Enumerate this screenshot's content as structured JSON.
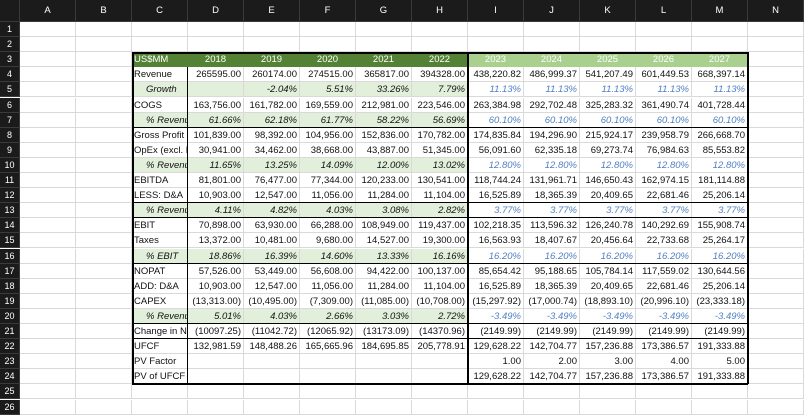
{
  "columns": [
    "A",
    "B",
    "C",
    "D",
    "E",
    "F",
    "G",
    "H",
    "I",
    "J",
    "K",
    "L",
    "M",
    "N"
  ],
  "row_numbers": [
    "1",
    "2",
    "3",
    "4",
    "5",
    "6",
    "7",
    "8",
    "9",
    "10",
    "11",
    "12",
    "13",
    "14",
    "15",
    "16",
    "17",
    "18",
    "19",
    "20",
    "21",
    "22",
    "23",
    "24",
    "25",
    "26"
  ],
  "table": {
    "header": [
      "US$MM",
      "2018",
      "2019",
      "2020",
      "2021",
      "2022",
      "2023",
      "2024",
      "2025",
      "2026",
      "2027"
    ],
    "rows": [
      {
        "label": "Revenue",
        "values": [
          "265595.00",
          "260174.00",
          "274515.00",
          "365817.00",
          "394328.00",
          "438,220.82",
          "486,999.37",
          "541,207.49",
          "601,449.53",
          "668,397.14"
        ]
      },
      {
        "label": "Growth",
        "values": [
          null,
          "-2.04%",
          "5.51%",
          "33.26%",
          "7.79%",
          "11.13%",
          "11.13%",
          "11.13%",
          "11.13%",
          "11.13%"
        ]
      },
      {
        "label": "COGS",
        "values": [
          "163,756.00",
          "161,782.00",
          "169,559.00",
          "212,981.00",
          "223,546.00",
          "263,384.98",
          "292,702.48",
          "325,283.32",
          "361,490.74",
          "401,728.44"
        ]
      },
      {
        "label": "% Revenue",
        "values": [
          "61.66%",
          "62.18%",
          "61.77%",
          "58.22%",
          "56.69%",
          "60.10%",
          "60.10%",
          "60.10%",
          "60.10%",
          "60.10%"
        ]
      },
      {
        "label": "Gross Profit",
        "values": [
          "101,839.00",
          "98,392.00",
          "104,956.00",
          "152,836.00",
          "170,782.00",
          "174,835.84",
          "194,296.90",
          "215,924.17",
          "239,958.79",
          "266,668.70"
        ]
      },
      {
        "label": "OpEx (excl. D",
        "values": [
          "30,941.00",
          "34,462.00",
          "38,668.00",
          "43,887.00",
          "51,345.00",
          "56,091.60",
          "62,335.18",
          "69,273.74",
          "76,984.63",
          "85,553.82"
        ]
      },
      {
        "label": "% Revenue",
        "values": [
          "11.65%",
          "13.25%",
          "14.09%",
          "12.00%",
          "13.02%",
          "12.80%",
          "12.80%",
          "12.80%",
          "12.80%",
          "12.80%"
        ]
      },
      {
        "label": "EBITDA",
        "values": [
          "81,801.00",
          "76,477.00",
          "77,344.00",
          "120,233.00",
          "130,541.00",
          "118,744.24",
          "131,961.71",
          "146,650.43",
          "162,974.15",
          "181,114.88"
        ]
      },
      {
        "label": "LESS: D&A",
        "values": [
          "10,903.00",
          "12,547.00",
          "11,056.00",
          "11,284.00",
          "11,104.00",
          "16,525.89",
          "18,365.39",
          "20,409.65",
          "22,681.46",
          "25,206.14"
        ]
      },
      {
        "label": "% Revenue",
        "values": [
          "4.11%",
          "4.82%",
          "4.03%",
          "3.08%",
          "2.82%",
          "3.77%",
          "3.77%",
          "3.77%",
          "3.77%",
          "3.77%"
        ]
      },
      {
        "label": "EBIT",
        "values": [
          "70,898.00",
          "63,930.00",
          "66,288.00",
          "108,949.00",
          "119,437.00",
          "102,218.35",
          "113,596.32",
          "126,240.78",
          "140,292.69",
          "155,908.74"
        ]
      },
      {
        "label": "Taxes",
        "values": [
          "13,372.00",
          "10,481.00",
          "9,680.00",
          "14,527.00",
          "19,300.00",
          "16,563.93",
          "18,407.67",
          "20,456.64",
          "22,733.68",
          "25,264.17"
        ]
      },
      {
        "label": "% EBIT",
        "values": [
          "18.86%",
          "16.39%",
          "14.60%",
          "13.33%",
          "16.16%",
          "16.20%",
          "16.20%",
          "16.20%",
          "16.20%",
          "16.20%"
        ]
      },
      {
        "label": "NOPAT",
        "values": [
          "57,526.00",
          "53,449.00",
          "56,608.00",
          "94,422.00",
          "100,137.00",
          "85,654.42",
          "95,188.65",
          "105,784.14",
          "117,559.02",
          "130,644.56"
        ]
      },
      {
        "label": "ADD: D&A",
        "values": [
          "10,903.00",
          "12,547.00",
          "11,056.00",
          "11,284.00",
          "11,104.00",
          "16,525.89",
          "18,365.39",
          "20,409.65",
          "22,681.46",
          "25,206.14"
        ]
      },
      {
        "label": "CAPEX",
        "values": [
          "(13,313.00)",
          "(10,495.00)",
          "(7,309.00)",
          "(11,085.00)",
          "(10,708.00)",
          "(15,297.92)",
          "(17,000.74)",
          "(18,893.10)",
          "(20,996.10)",
          "(23,333.18)"
        ]
      },
      {
        "label": "% Revenue",
        "values": [
          "5.01%",
          "4.03%",
          "2.66%",
          "3.03%",
          "2.72%",
          "-3.49%",
          "-3.49%",
          "-3.49%",
          "-3.49%",
          "-3.49%"
        ]
      },
      {
        "label": "Change in NV",
        "values": [
          "(10097.25)",
          "(11042.72)",
          "(12065.92)",
          "(13173.09)",
          "(14370.96)",
          "(2149.99)",
          "(2149.99)",
          "(2149.99)",
          "(2149.99)",
          "(2149.99)"
        ]
      },
      {
        "label": "UFCF",
        "values": [
          "132,981.59",
          "148,488.26",
          "165,665.96",
          "184,695.85",
          "205,778.91",
          "129,628.22",
          "142,704.77",
          "157,236.88",
          "173,386.57",
          "191,333.88"
        ]
      },
      {
        "label": "PV Factor",
        "values": [
          null,
          null,
          null,
          null,
          null,
          "1.00",
          "2.00",
          "3.00",
          "4.00",
          "5.00"
        ]
      },
      {
        "label": "PV of UFCF",
        "values": [
          null,
          null,
          null,
          null,
          null,
          "129,628.22",
          "142,704.77",
          "157,236.88",
          "173,386.57",
          "191,333.88"
        ]
      }
    ]
  }
}
